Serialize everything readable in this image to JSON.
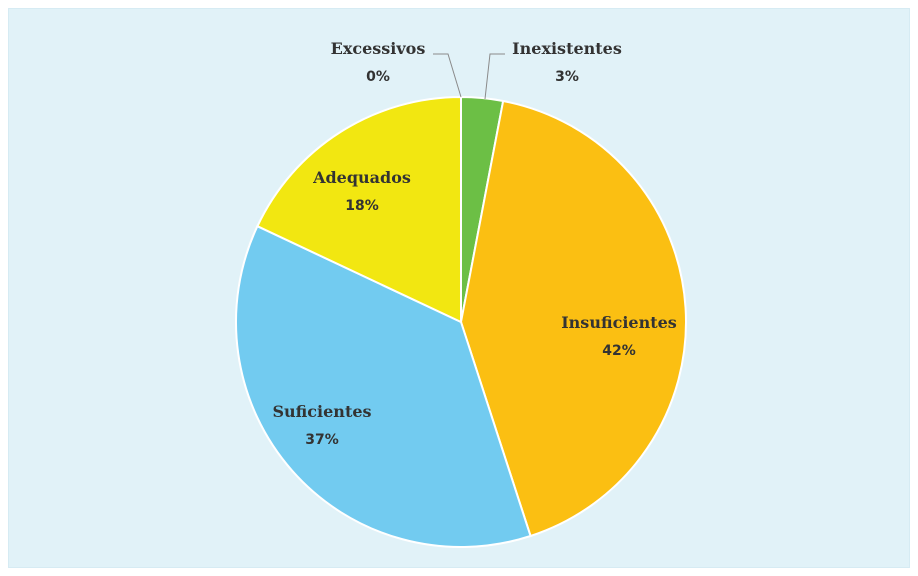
{
  "chart_data": {
    "type": "pie",
    "slices": [
      {
        "label": "Inexistentes",
        "pct_label": "3%",
        "value": 3,
        "color": "#6cbf45"
      },
      {
        "label": "Insuficientes",
        "pct_label": "42%",
        "value": 42,
        "color": "#fbbf12"
      },
      {
        "label": "Suficientes",
        "pct_label": "37%",
        "value": 37,
        "color": "#72cbf0"
      },
      {
        "label": "Adequados",
        "pct_label": "18%",
        "value": 18,
        "color": "#f2e711"
      },
      {
        "label": "Excessivos",
        "pct_label": "0%",
        "value": 0,
        "color": "#9e9e9e"
      }
    ]
  }
}
